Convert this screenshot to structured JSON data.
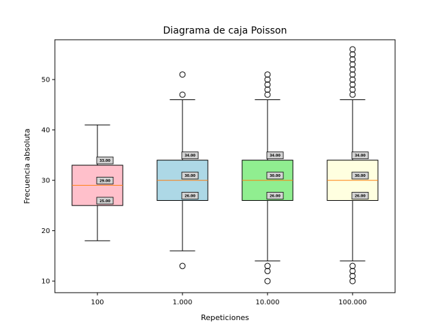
{
  "chart_data": {
    "type": "boxplot",
    "title": "Diagrama de caja Poisson",
    "xlabel": "Repeticiones",
    "ylabel": "Frecuencia absoluta",
    "ylim": [
      7.7,
      57.9
    ],
    "yticks": [
      10,
      20,
      30,
      40,
      50
    ],
    "grid": false,
    "categories": [
      "100",
      "1.000",
      "10.000",
      "100.000"
    ],
    "boxes": [
      {
        "category": "100",
        "color": "#ffc0cb",
        "whisker_low": 18,
        "q1": 25,
        "median": 29,
        "q3": 33,
        "whisker_high": 41,
        "outliers": [],
        "labels": {
          "q1": "25.00",
          "median": "29.00",
          "q3": "33.00"
        }
      },
      {
        "category": "1.000",
        "color": "#add8e6",
        "whisker_low": 16,
        "q1": 26,
        "median": 30,
        "q3": 34,
        "whisker_high": 46,
        "outliers": [
          13,
          47,
          51
        ],
        "labels": {
          "q1": "26.00",
          "median": "30.00",
          "q3": "34.00"
        }
      },
      {
        "category": "10.000",
        "color": "#90ee90",
        "whisker_low": 14,
        "q1": 26,
        "median": 30,
        "q3": 34,
        "whisker_high": 46,
        "outliers": [
          10,
          12,
          13,
          47,
          48,
          49,
          50,
          51
        ],
        "labels": {
          "q1": "26.00",
          "median": "30.00",
          "q3": "34.00"
        }
      },
      {
        "category": "100.000",
        "color": "#ffffe0",
        "whisker_low": 14,
        "q1": 26,
        "median": 30,
        "q3": 34,
        "whisker_high": 46,
        "outliers": [
          10,
          11,
          12,
          13,
          47,
          48,
          49,
          50,
          51,
          52,
          53,
          54,
          55,
          56
        ],
        "labels": {
          "q1": "26.00",
          "median": "30.00",
          "q3": "34.00"
        }
      }
    ],
    "median_color": "#ff7f0e"
  }
}
